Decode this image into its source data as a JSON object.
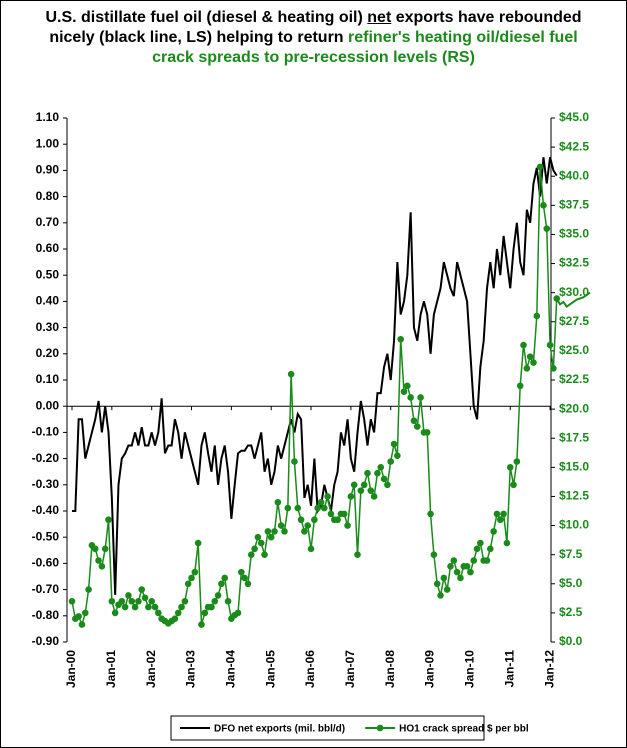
{
  "chart_data": {
    "type": "line",
    "title": [
      {
        "text": "U.S. distillate fuel oil (diesel & heating oil) ",
        "color": "#000000",
        "underline": false
      },
      {
        "text": "net",
        "color": "#000000",
        "underline": true
      },
      {
        "text": " exports have rebounded nicely (black line, LS) helping to return ",
        "color": "#000000",
        "underline": false
      },
      {
        "text": "refiner's heating oil/diesel fuel crack spreads to pre-recession levels (RS)",
        "color": "#1a8a1a",
        "underline": false
      }
    ],
    "categories": [
      "Jan-00",
      null,
      null,
      null,
      null,
      null,
      null,
      null,
      null,
      null,
      null,
      null,
      "Jan-01",
      null,
      null,
      null,
      null,
      null,
      null,
      null,
      null,
      null,
      null,
      null,
      "Jan-02",
      null,
      null,
      null,
      null,
      null,
      null,
      null,
      null,
      null,
      null,
      null,
      "Jan-03",
      null,
      null,
      null,
      null,
      null,
      null,
      null,
      null,
      null,
      null,
      null,
      "Jan-04",
      null,
      null,
      null,
      null,
      null,
      null,
      null,
      null,
      null,
      null,
      null,
      "Jan-05",
      null,
      null,
      null,
      null,
      null,
      null,
      null,
      null,
      null,
      null,
      null,
      "Jan-06",
      null,
      null,
      null,
      null,
      null,
      null,
      null,
      null,
      null,
      null,
      null,
      "Jan-07",
      null,
      null,
      null,
      null,
      null,
      null,
      null,
      null,
      null,
      null,
      null,
      "Jan-08",
      null,
      null,
      null,
      null,
      null,
      null,
      null,
      null,
      null,
      null,
      null,
      "Jan-09",
      null,
      null,
      null,
      null,
      null,
      null,
      null,
      null,
      null,
      null,
      null,
      "Jan-10",
      null,
      null,
      null,
      null,
      null,
      null,
      null,
      null,
      null,
      null,
      null,
      "Jan-11",
      null,
      null,
      null,
      null,
      null,
      null,
      null,
      null,
      null,
      null,
      null,
      "Jan-12",
      null,
      null,
      null,
      null,
      null,
      null,
      null,
      null,
      null,
      null,
      null,
      null
    ],
    "series": [
      {
        "name": "DFO net exports (mil. bbl/d)",
        "color": "#000000",
        "axis": "y",
        "markers": false,
        "values": [
          -0.4,
          -0.4,
          -0.05,
          -0.05,
          -0.2,
          -0.15,
          -0.1,
          -0.05,
          0.02,
          -0.1,
          0.0,
          -0.1,
          -0.35,
          -0.72,
          -0.3,
          -0.2,
          -0.18,
          -0.15,
          -0.15,
          -0.1,
          -0.15,
          -0.08,
          -0.15,
          -0.15,
          -0.1,
          -0.15,
          -0.1,
          0.03,
          -0.18,
          -0.15,
          -0.15,
          -0.05,
          -0.1,
          -0.2,
          -0.1,
          -0.15,
          -0.2,
          -0.25,
          -0.3,
          -0.15,
          -0.1,
          -0.18,
          -0.25,
          -0.15,
          -0.3,
          -0.2,
          -0.15,
          -0.25,
          -0.43,
          -0.3,
          -0.18,
          -0.17,
          -0.17,
          -0.15,
          -0.15,
          -0.2,
          -0.15,
          -0.1,
          -0.25,
          -0.2,
          -0.3,
          -0.25,
          -0.15,
          -0.2,
          -0.15,
          -0.1,
          -0.05,
          -0.1,
          -0.03,
          -0.05,
          -0.35,
          -0.3,
          -0.38,
          -0.2,
          -0.4,
          -0.38,
          -0.3,
          -0.35,
          -0.4,
          -0.3,
          -0.25,
          -0.1,
          -0.15,
          -0.05,
          -0.2,
          -0.25,
          -0.1,
          0.02,
          -0.05,
          -0.15,
          -0.05,
          -0.1,
          0.05,
          0.05,
          0.15,
          0.2,
          0.1,
          0.25,
          0.55,
          0.35,
          0.4,
          0.5,
          0.74,
          0.3,
          0.25,
          0.35,
          0.4,
          0.35,
          0.2,
          0.35,
          0.4,
          0.45,
          0.55,
          0.5,
          0.45,
          0.42,
          0.55,
          0.5,
          0.45,
          0.4,
          0.2,
          0.0,
          -0.05,
          0.15,
          0.25,
          0.45,
          0.55,
          0.45,
          0.6,
          0.5,
          0.65,
          0.55,
          0.45,
          0.6,
          0.7,
          0.55,
          0.5,
          0.75,
          0.7,
          0.85,
          0.91,
          0.8,
          0.95,
          0.85,
          0.95,
          0.9,
          0.88,
          null,
          null,
          null,
          null,
          null,
          null,
          null,
          null,
          null,
          null
        ]
      },
      {
        "name": "HO1 crack spread $ per bbl",
        "color": "#1a8a1a",
        "axis": "y2",
        "markers": true,
        "values": [
          3.5,
          2.0,
          2.2,
          1.5,
          2.5,
          4.5,
          8.3,
          8.0,
          7.0,
          6.5,
          8.0,
          10.5,
          3.5,
          2.5,
          3.2,
          3.5,
          3.0,
          4.0,
          3.5,
          3.0,
          3.5,
          4.5,
          3.8,
          3.0,
          3.5,
          3.0,
          2.5,
          2.0,
          1.8,
          1.6,
          1.8,
          2.0,
          2.5,
          3.0,
          3.5,
          5.0,
          5.5,
          6.0,
          8.5,
          1.5,
          2.5,
          3.0,
          3.0,
          3.5,
          4.0,
          5.0,
          5.5,
          3.5,
          2.0,
          2.3,
          2.5,
          6.0,
          5.5,
          5.0,
          7.5,
          8.0,
          9.0,
          8.5,
          7.5,
          9.5,
          9.0,
          9.5,
          12.0,
          10.0,
          9.5,
          11.5,
          23.0,
          15.5,
          11.5,
          10.5,
          9.5,
          10.0,
          8.0,
          10.5,
          11.5,
          12.0,
          11.5,
          12.5,
          11.0,
          10.5,
          10.5,
          11.0,
          11.0,
          10.0,
          12.5,
          13.5,
          7.5,
          13.0,
          13.5,
          14.5,
          13.0,
          12.5,
          14.5,
          15.0,
          14.0,
          13.5,
          15.5,
          17.0,
          16.0,
          26.0,
          21.5,
          22.0,
          21.0,
          19.0,
          18.5,
          21.0,
          18.0,
          18.0,
          11.0,
          7.5,
          5.0,
          4.0,
          5.5,
          4.5,
          6.5,
          7.0,
          6.0,
          5.5,
          6.5,
          6.5,
          6.0,
          7.0,
          8.0,
          8.5,
          7.0,
          7.0,
          8.0,
          9.5,
          11.0,
          10.5,
          11.0,
          8.5,
          15.0,
          13.5,
          15.5,
          22.0,
          25.5,
          23.5,
          24.5,
          24.0,
          28.0,
          40.8,
          37.5,
          35.5,
          25.5,
          23.5,
          29.5,
          null,
          null,
          null,
          null,
          null,
          null,
          null,
          null,
          null,
          null
        ]
      },
      {
        "color": "#1a8a1a",
        "axis": "y2",
        "markers": false,
        "values": [
          null,
          null,
          null,
          null,
          null,
          null,
          null,
          null,
          null,
          null,
          null,
          null,
          null,
          null,
          null,
          null,
          null,
          null,
          null,
          null,
          null,
          null,
          null,
          null,
          null,
          null,
          null,
          null,
          null,
          null,
          null,
          null,
          null,
          null,
          null,
          null,
          null,
          null,
          null,
          null,
          null,
          null,
          null,
          null,
          null,
          null,
          null,
          null,
          null,
          null,
          null,
          null,
          null,
          null,
          null,
          null,
          null,
          null,
          null,
          null,
          null,
          null,
          null,
          null,
          null,
          null,
          null,
          null,
          null,
          null,
          null,
          null,
          null,
          null,
          null,
          null,
          null,
          null,
          null,
          null,
          null,
          null,
          null,
          null,
          null,
          null,
          null,
          null,
          null,
          null,
          null,
          null,
          null,
          null,
          null,
          null,
          null,
          null,
          null,
          null,
          null,
          null,
          null,
          null,
          null,
          null,
          null,
          null,
          null,
          null,
          null,
          null,
          null,
          null,
          null,
          null,
          null,
          null,
          null,
          null,
          null,
          null,
          null,
          null,
          null,
          null,
          null,
          null,
          null,
          null,
          null,
          null,
          null,
          null,
          null,
          null,
          null,
          null,
          null,
          null,
          null,
          null,
          null,
          null,
          null,
          null,
          29.5,
          29.0,
          29.2,
          28.8,
          29.0,
          29.2,
          29.4,
          29.5,
          29.6,
          29.8,
          30.0
        ]
      }
    ],
    "ylim": [
      -0.9,
      1.1
    ],
    "yticks": [
      {
        "value": 1.1,
        "label": "1.10"
      },
      {
        "value": 1.0,
        "label": "1.00"
      },
      {
        "value": 0.9,
        "label": "0.90"
      },
      {
        "value": 0.8,
        "label": "0.80"
      },
      {
        "value": 0.7,
        "label": "0.70"
      },
      {
        "value": 0.6,
        "label": "0.60"
      },
      {
        "value": 0.5,
        "label": "0.50"
      },
      {
        "value": 0.4,
        "label": "0.40"
      },
      {
        "value": 0.3,
        "label": "0.30"
      },
      {
        "value": 0.2,
        "label": "0.20"
      },
      {
        "value": 0.1,
        "label": "0.10"
      },
      {
        "value": 0,
        "label": "0.00"
      },
      {
        "value": -0.1,
        "label": "-0.10"
      },
      {
        "value": -0.2,
        "label": "-0.20"
      },
      {
        "value": -0.3,
        "label": "-0.30"
      },
      {
        "value": -0.4,
        "label": "-0.40"
      },
      {
        "value": -0.5,
        "label": "-0.50"
      },
      {
        "value": -0.6,
        "label": "-0.60"
      },
      {
        "value": -0.7,
        "label": "-0.70"
      },
      {
        "value": -0.8,
        "label": "-0.80"
      },
      {
        "value": -0.9,
        "label": "-0.90"
      }
    ],
    "y2lim": [
      0,
      45
    ],
    "y2ticks": [
      {
        "value": 45,
        "label": "$45.0"
      },
      {
        "value": 42.5,
        "label": "$42.5"
      },
      {
        "value": 40,
        "label": "$40.0"
      },
      {
        "value": 37.5,
        "label": "$37.5"
      },
      {
        "value": 35,
        "label": "$35.0"
      },
      {
        "value": 32.5,
        "label": "$32.5"
      },
      {
        "value": 30,
        "label": "$30.0"
      },
      {
        "value": 27.5,
        "label": "$27.5"
      },
      {
        "value": 25,
        "label": "$25.0"
      },
      {
        "value": 22.5,
        "label": "$22.5"
      },
      {
        "value": 20,
        "label": "$20.0"
      },
      {
        "value": 17.5,
        "label": "$17.5"
      },
      {
        "value": 15,
        "label": "$15.0"
      },
      {
        "value": 12.5,
        "label": "$12.5"
      },
      {
        "value": 10,
        "label": "$10.0"
      },
      {
        "value": 7.5,
        "label": "$7.5"
      },
      {
        "value": 5,
        "label": "$5.0"
      },
      {
        "value": 2.5,
        "label": "$2.5"
      },
      {
        "value": 0,
        "label": "$0.0"
      }
    ],
    "y2color": "#1a8a1a",
    "grid": false,
    "legend": "bottom"
  }
}
